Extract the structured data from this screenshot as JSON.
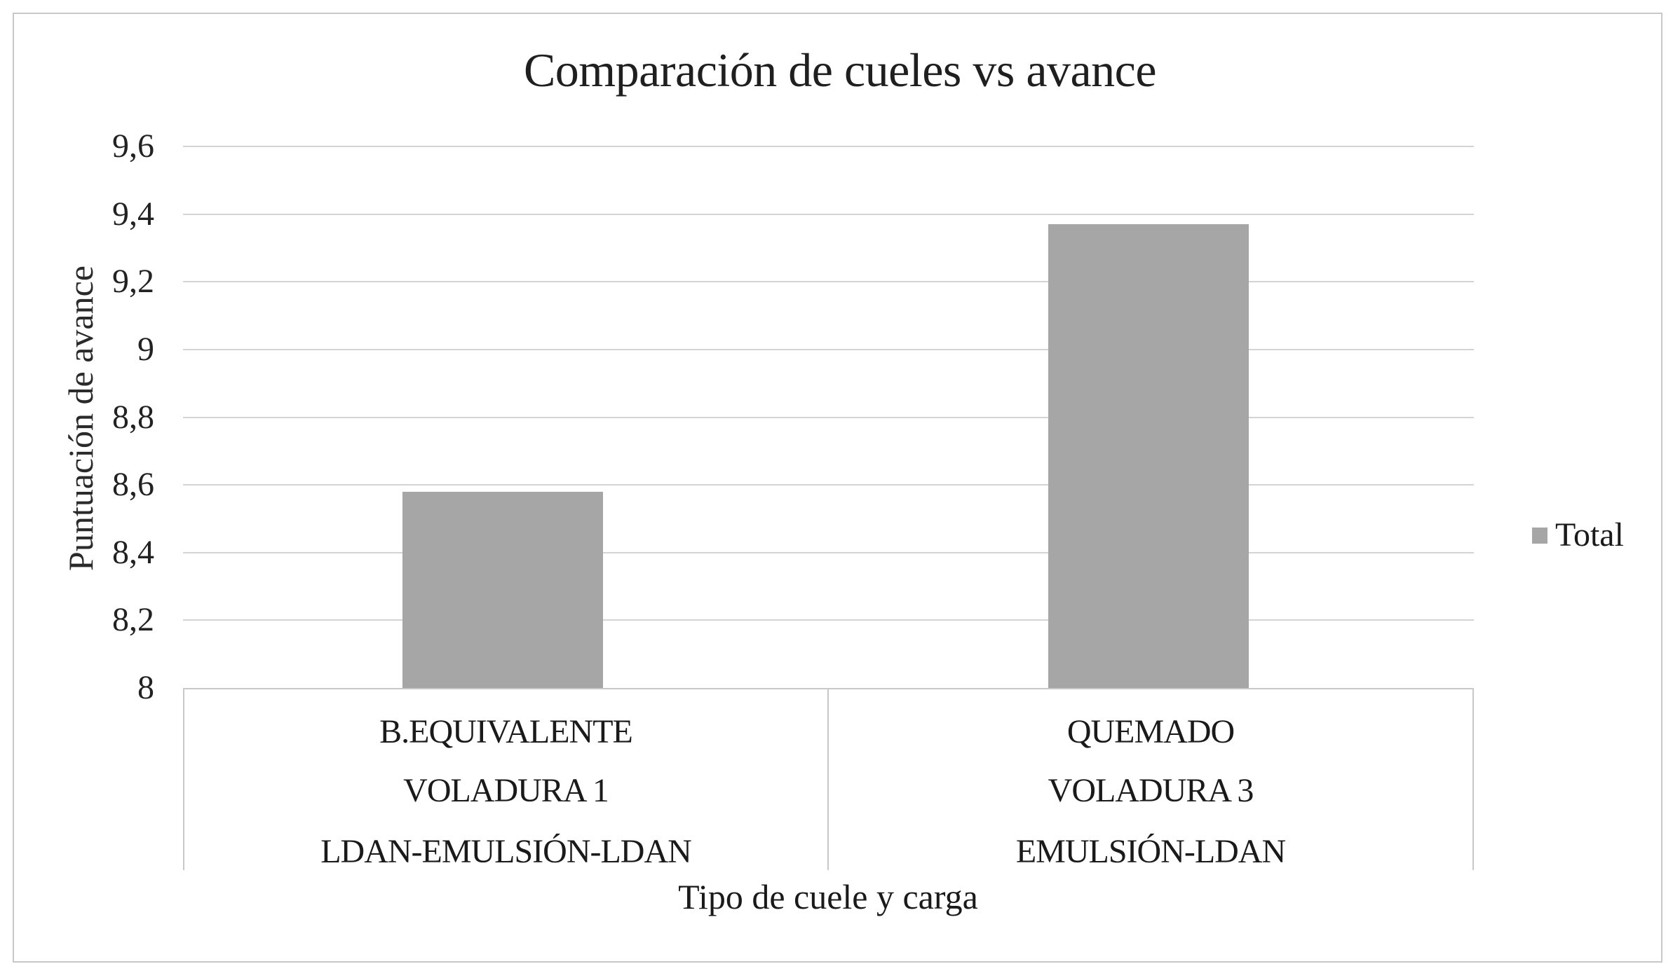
{
  "chart_data": {
    "type": "bar",
    "title": "Comparación de cueles vs avance",
    "xlabel": "Tipo de cuele y carga",
    "ylabel": "Puntuación de avance",
    "categories": [
      [
        "B.EQUIVALENTE",
        "VOLADURA 1",
        "LDAN-EMULSIÓN-LDAN"
      ],
      [
        "QUEMADO",
        "VOLADURA 3",
        "EMULSIÓN-LDAN"
      ]
    ],
    "series": [
      {
        "name": "Total",
        "color": "#a6a6a6",
        "values": [
          8.58,
          9.37
        ]
      }
    ],
    "ylim": [
      8,
      9.6
    ],
    "yticks": [
      "8",
      "8,2",
      "8,4",
      "8,6",
      "8,8",
      "9",
      "9,2",
      "9,4",
      "9,6"
    ],
    "grid": true,
    "legend_position": "right"
  },
  "legend": {
    "label": "Total"
  }
}
